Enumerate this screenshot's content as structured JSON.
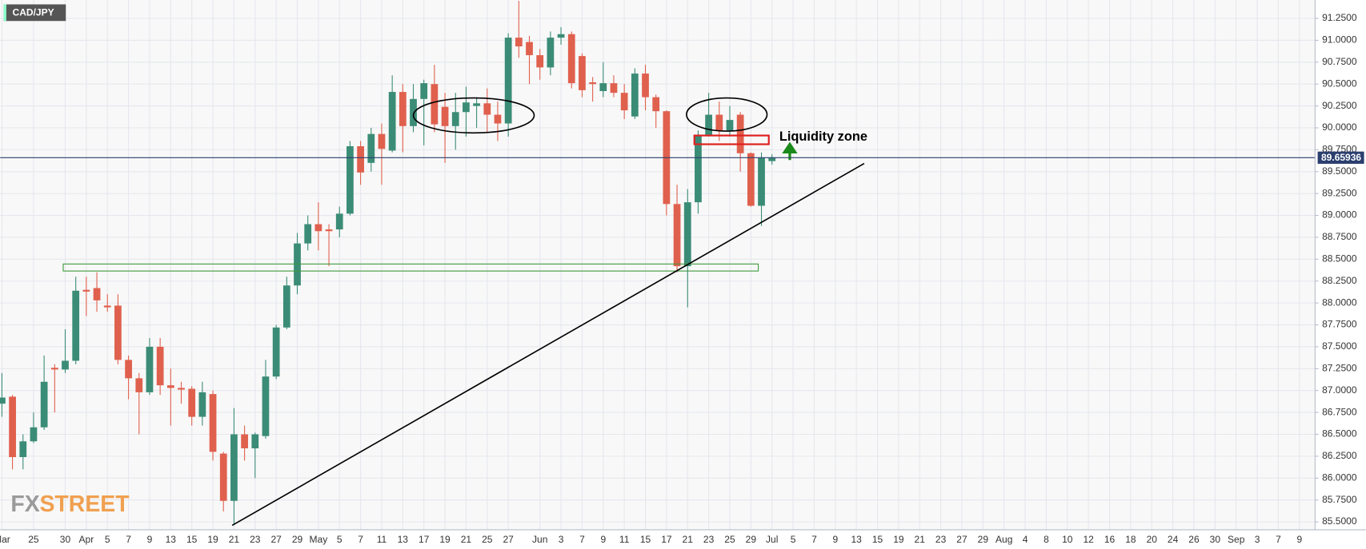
{
  "chart_data": {
    "type": "candlestick",
    "title": "CAD/JPY",
    "annotation": "Liquidity zone",
    "logo": {
      "fx": "FX",
      "street": "STREET"
    },
    "last_price": 89.65936,
    "up_color": "#3b8c76",
    "down_color": "#e0604e",
    "grid": true,
    "ylim": [
      85.41,
      91.46
    ],
    "yticks": [
      {
        "value": 85.5,
        "label": "85.5000"
      },
      {
        "value": 85.75,
        "label": "85.7500"
      },
      {
        "value": 86,
        "label": "86.0000"
      },
      {
        "value": 86.25,
        "label": "86.2500"
      },
      {
        "value": 86.5,
        "label": "86.5000"
      },
      {
        "value": 86.75,
        "label": "86.7500"
      },
      {
        "value": 87,
        "label": "87.0000"
      },
      {
        "value": 87.25,
        "label": "87.2500"
      },
      {
        "value": 87.5,
        "label": "87.5000"
      },
      {
        "value": 87.75,
        "label": "87.7500"
      },
      {
        "value": 88,
        "label": "88.0000"
      },
      {
        "value": 88.25,
        "label": "88.2500"
      },
      {
        "value": 88.5,
        "label": "88.5000"
      },
      {
        "value": 88.75,
        "label": "88.7500"
      },
      {
        "value": 89,
        "label": "89.0000"
      },
      {
        "value": 89.25,
        "label": "89.2500"
      },
      {
        "value": 89.5,
        "label": "89.5000"
      },
      {
        "value": 89.75,
        "label": "89.7500"
      },
      {
        "value": 90,
        "label": "90.0000"
      },
      {
        "value": 90.25,
        "label": "90.2500"
      },
      {
        "value": 90.5,
        "label": "90.5000"
      },
      {
        "value": 90.75,
        "label": "90.7500"
      },
      {
        "value": 91,
        "label": "91.0000"
      },
      {
        "value": 91.25,
        "label": "91.2500"
      }
    ],
    "categories": [
      "Mar",
      null,
      null,
      "25",
      null,
      null,
      "30",
      null,
      "Apr",
      null,
      "5",
      null,
      "7",
      null,
      "9",
      null,
      "13",
      null,
      "15",
      null,
      "19",
      null,
      "21",
      null,
      "23",
      null,
      "27",
      null,
      "29",
      null,
      "May",
      null,
      "5",
      null,
      "7",
      null,
      "11",
      null,
      "13",
      null,
      "17",
      null,
      "19",
      null,
      "21",
      null,
      "25",
      null,
      "27",
      null,
      null,
      "Jun",
      null,
      "3",
      null,
      "7",
      null,
      "9",
      null,
      "11",
      null,
      "15",
      null,
      "17",
      null,
      "21",
      null,
      "23",
      null,
      "25",
      null,
      "29",
      null,
      "Jul",
      null,
      "5",
      null,
      "7",
      null,
      "9",
      null,
      "13",
      null,
      "15",
      null,
      "19",
      null,
      "21",
      null,
      "23",
      null,
      "27",
      null,
      "29",
      null,
      "Aug",
      null,
      "4",
      null,
      "8",
      null,
      "10",
      null,
      "12",
      null,
      "16",
      null,
      "18",
      null,
      "20",
      null,
      "24",
      null,
      "26",
      null,
      "30",
      null,
      "Sep",
      null,
      "3",
      null,
      "7",
      null,
      "9"
    ],
    "open": [
      86.85,
      86.93,
      86.24,
      86.42,
      86.58,
      87.26,
      87.24,
      87.34,
      88.15,
      88.17,
      87.97,
      87.97,
      87.35,
      87.14,
      86.98,
      87.5,
      87.06,
      87.03,
      87.02,
      86.7,
      86.96,
      86.28,
      85.74,
      86.5,
      86.34,
      86.48,
      87.16,
      87.72,
      88.2,
      88.68,
      88.9,
      88.84,
      88.84,
      89.02,
      89.79,
      89.6,
      89.93,
      89.74,
      90.41,
      90.02,
      90.33,
      90.5,
      90.24,
      90.02,
      90.18,
      90.25,
      90.28,
      90.15,
      90.05,
      91.03,
      90.98,
      90.83,
      90.69,
      91.03,
      91.07,
      90.82,
      90.52,
      90.42,
      90.51,
      90.4,
      90.13,
      90.62,
      90.35,
      90.19,
      89.13,
      88.42,
      89.15,
      89.91,
      90.15,
      89.97,
      90.15,
      89.71,
      89.11,
      89.62,
      null,
      null,
      null,
      null,
      null,
      null,
      null,
      null,
      null,
      null,
      null,
      null,
      null,
      null,
      null,
      null,
      null,
      null,
      null,
      null,
      null,
      null,
      null,
      null,
      null,
      null,
      null,
      null,
      null,
      null,
      null,
      null,
      null,
      null,
      null,
      null,
      null,
      null,
      null,
      null,
      null,
      null,
      null,
      null,
      null,
      null,
      null,
      null,
      null,
      null
    ],
    "high": [
      87.2,
      86.95,
      86.5,
      86.75,
      87.4,
      87.3,
      87.7,
      88.3,
      88.3,
      88.35,
      88.1,
      88.1,
      87.4,
      87.2,
      87.6,
      87.6,
      87.25,
      87.1,
      87.05,
      87.1,
      87.0,
      86.3,
      86.8,
      86.6,
      86.52,
      87.35,
      87.75,
      88.3,
      88.8,
      89.0,
      89.15,
      88.9,
      89.1,
      89.85,
      89.85,
      90.0,
      90.05,
      90.6,
      90.5,
      90.5,
      90.55,
      90.72,
      90.4,
      90.4,
      90.47,
      90.35,
      90.45,
      90.3,
      91.08,
      91.45,
      91.05,
      90.9,
      91.1,
      91.15,
      91.1,
      90.85,
      90.58,
      90.75,
      90.6,
      90.5,
      90.68,
      90.72,
      90.38,
      90.2,
      89.35,
      89.3,
      89.97,
      90.4,
      90.3,
      90.25,
      90.18,
      89.72,
      89.72,
      89.7,
      null,
      null,
      null,
      null,
      null,
      null,
      null,
      null,
      null,
      null,
      null,
      null,
      null,
      null,
      null,
      null,
      null,
      null,
      null,
      null,
      null,
      null,
      null,
      null,
      null,
      null,
      null,
      null,
      null,
      null,
      null,
      null,
      null,
      null,
      null,
      null,
      null,
      null,
      null,
      null,
      null,
      null,
      null,
      null,
      null,
      null,
      null,
      null,
      null,
      null
    ],
    "low": [
      86.7,
      86.1,
      86.1,
      86.4,
      86.55,
      86.75,
      87.2,
      87.3,
      87.85,
      87.9,
      87.9,
      87.3,
      86.9,
      86.5,
      86.95,
      86.95,
      86.6,
      86.85,
      86.6,
      86.6,
      86.2,
      85.62,
      85.47,
      86.2,
      86.0,
      86.45,
      87.13,
      87.7,
      88.1,
      88.6,
      88.6,
      88.42,
      88.75,
      89.0,
      89.35,
      89.5,
      89.35,
      89.72,
      89.72,
      89.95,
      89.8,
      89.95,
      89.6,
      89.75,
      89.9,
      90.0,
      89.95,
      89.85,
      89.9,
      90.8,
      90.5,
      90.55,
      90.6,
      90.95,
      90.45,
      90.35,
      90.3,
      90.35,
      90.35,
      90.1,
      90.1,
      90.2,
      90.0,
      89.0,
      88.35,
      87.95,
      89.02,
      89.9,
      89.85,
      89.9,
      89.5,
      89.1,
      88.88,
      89.58,
      null,
      null,
      null,
      null,
      null,
      null,
      null,
      null,
      null,
      null,
      null,
      null,
      null,
      null,
      null,
      null,
      null,
      null,
      null,
      null,
      null,
      null,
      null,
      null,
      null,
      null,
      null,
      null,
      null,
      null,
      null,
      null,
      null,
      null,
      null,
      null,
      null,
      null,
      null,
      null,
      null,
      null,
      null,
      null,
      null,
      null,
      null,
      null,
      null,
      null
    ],
    "close": [
      86.92,
      86.24,
      86.42,
      86.58,
      87.1,
      87.24,
      87.34,
      88.14,
      88.13,
      88.03,
      87.95,
      87.35,
      87.14,
      86.98,
      87.5,
      87.06,
      87.03,
      87.01,
      86.7,
      86.98,
      86.3,
      85.74,
      86.5,
      86.34,
      86.5,
      87.16,
      87.72,
      88.2,
      88.68,
      88.9,
      88.82,
      88.82,
      89.02,
      89.79,
      89.49,
      89.93,
      89.76,
      90.41,
      90.02,
      90.33,
      90.51,
      90.04,
      90.02,
      90.18,
      90.29,
      90.28,
      90.15,
      90.05,
      91.03,
      90.93,
      90.83,
      90.69,
      91.03,
      91.07,
      90.51,
      90.43,
      90.5,
      90.51,
      90.4,
      90.2,
      90.62,
      90.35,
      90.19,
      89.13,
      88.42,
      89.15,
      89.91,
      90.15,
      89.97,
      90.09,
      89.71,
      89.11,
      89.66,
      89.66,
      null,
      null,
      null,
      null,
      null,
      null,
      null,
      null,
      null,
      null,
      null,
      null,
      null,
      null,
      null,
      null,
      null,
      null,
      null,
      null,
      null,
      null,
      null,
      null,
      null,
      null,
      null,
      null,
      null,
      null,
      null,
      null,
      null,
      null,
      null,
      null,
      null,
      null,
      null,
      null,
      null,
      null,
      null,
      null,
      null,
      null,
      null,
      null,
      null,
      null
    ]
  }
}
